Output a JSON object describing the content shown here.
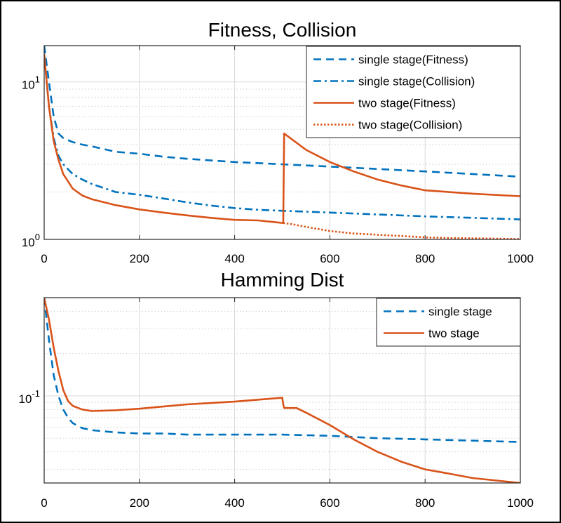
{
  "colors": {
    "blue": "#0072BD",
    "orange": "#D95319",
    "grid": "#d9d9d9",
    "axis": "#262626"
  },
  "chart_data": [
    {
      "type": "line",
      "title": "Fitness, Collision",
      "yscale": "log",
      "xlim": [
        0,
        1000
      ],
      "ylim": [
        1,
        17
      ],
      "grid": true,
      "x_ticks": [
        0,
        200,
        400,
        600,
        800,
        1000
      ],
      "x_tick_labels": [
        "0",
        "200",
        "400",
        "600",
        "800",
        "1000"
      ],
      "y_ticks": [
        1,
        10
      ],
      "y_tick_labels": [
        {
          "base": "10",
          "exp": "0"
        },
        {
          "base": "10",
          "exp": "1"
        }
      ],
      "legend_position": "top-right",
      "series": [
        {
          "name": "single stage(Fitness)",
          "color": "#0072BD",
          "style": "dashed",
          "x": [
            0,
            10,
            20,
            30,
            40,
            60,
            80,
            100,
            150,
            200,
            250,
            300,
            400,
            500,
            600,
            700,
            800,
            900,
            1000
          ],
          "y": [
            17,
            10,
            6,
            4.7,
            4.4,
            4.15,
            4.0,
            3.9,
            3.6,
            3.5,
            3.35,
            3.25,
            3.1,
            3.0,
            2.9,
            2.8,
            2.7,
            2.6,
            2.5
          ]
        },
        {
          "name": "single stage(Collision)",
          "color": "#0072BD",
          "style": "dashdot",
          "x": [
            0,
            10,
            20,
            30,
            40,
            60,
            80,
            100,
            150,
            200,
            250,
            300,
            350,
            400,
            450,
            500,
            600,
            700,
            800,
            900,
            1000
          ],
          "y": [
            15,
            7,
            4.4,
            3.4,
            3.0,
            2.6,
            2.4,
            2.25,
            2.0,
            1.92,
            1.82,
            1.72,
            1.64,
            1.58,
            1.54,
            1.52,
            1.48,
            1.44,
            1.4,
            1.37,
            1.34
          ]
        },
        {
          "name": "two stage(Fitness)",
          "color": "#D95319",
          "style": "solid",
          "x": [
            0,
            10,
            20,
            30,
            40,
            60,
            80,
            100,
            150,
            200,
            250,
            300,
            350,
            400,
            450,
            502,
            504,
            550,
            600,
            650,
            700,
            750,
            800,
            900,
            1000
          ],
          "y": [
            15,
            7,
            4.2,
            3.2,
            2.6,
            2.1,
            1.9,
            1.8,
            1.65,
            1.55,
            1.48,
            1.42,
            1.37,
            1.33,
            1.32,
            1.27,
            4.7,
            3.7,
            3.1,
            2.7,
            2.4,
            2.2,
            2.05,
            1.95,
            1.88
          ]
        },
        {
          "name": "two stage(Collision)",
          "color": "#D95319",
          "style": "dotted",
          "x": [
            502,
            520,
            550,
            600,
            650,
            700,
            750,
            800,
            850,
            900,
            950,
            1000
          ],
          "y": [
            1.27,
            1.25,
            1.2,
            1.13,
            1.09,
            1.07,
            1.05,
            1.03,
            1.02,
            1.015,
            1.01,
            1.005
          ]
        }
      ]
    },
    {
      "type": "line",
      "title": "Hamming Dist",
      "yscale": "log",
      "xlim": [
        0,
        1000
      ],
      "ylim": [
        0.024,
        0.5
      ],
      "grid": true,
      "x_ticks": [
        0,
        200,
        400,
        600,
        800,
        1000
      ],
      "x_tick_labels": [
        "0",
        "200",
        "400",
        "600",
        "800",
        "1000"
      ],
      "y_ticks": [
        0.1
      ],
      "y_tick_labels": [
        {
          "base": "10",
          "exp": "-1"
        }
      ],
      "legend_position": "top-right",
      "series": [
        {
          "name": "single stage",
          "color": "#0072BD",
          "style": "dashed",
          "x": [
            0,
            10,
            20,
            30,
            40,
            50,
            60,
            80,
            100,
            150,
            200,
            250,
            300,
            400,
            500,
            600,
            650,
            700,
            800,
            900,
            1000
          ],
          "y": [
            0.5,
            0.25,
            0.14,
            0.1,
            0.08,
            0.07,
            0.064,
            0.059,
            0.057,
            0.055,
            0.054,
            0.054,
            0.053,
            0.053,
            0.053,
            0.052,
            0.051,
            0.05,
            0.049,
            0.048,
            0.047
          ]
        },
        {
          "name": "two stage",
          "color": "#D95319",
          "style": "solid",
          "x": [
            0,
            10,
            20,
            30,
            40,
            50,
            60,
            80,
            100,
            150,
            200,
            250,
            300,
            350,
            400,
            450,
            500,
            502,
            504,
            530,
            550,
            600,
            650,
            700,
            750,
            800,
            850,
            900,
            950,
            1000
          ],
          "y": [
            0.5,
            0.35,
            0.22,
            0.15,
            0.11,
            0.092,
            0.085,
            0.08,
            0.078,
            0.079,
            0.081,
            0.084,
            0.087,
            0.089,
            0.091,
            0.094,
            0.097,
            0.087,
            0.082,
            0.082,
            0.076,
            0.062,
            0.049,
            0.04,
            0.034,
            0.03,
            0.028,
            0.026,
            0.025,
            0.024
          ]
        }
      ]
    }
  ]
}
